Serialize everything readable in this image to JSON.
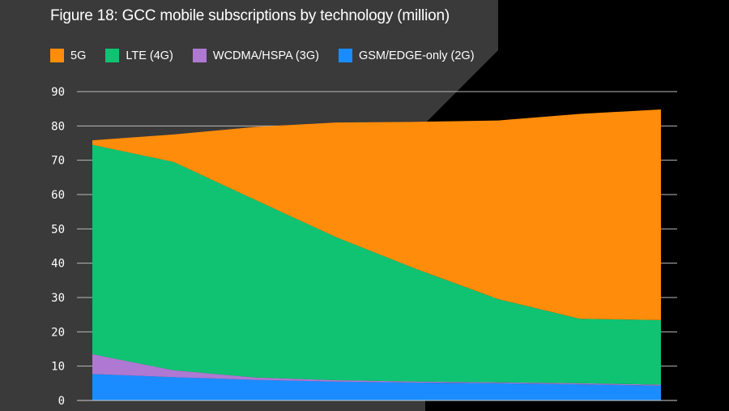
{
  "chart_data": {
    "type": "area",
    "stacked": true,
    "title": "Figure 18: GCC mobile subscriptions by technology (million)",
    "xlabel": "",
    "ylabel": "",
    "ylim": [
      0,
      90
    ],
    "yticks": [
      0,
      10,
      20,
      30,
      40,
      50,
      60,
      70,
      80,
      90
    ],
    "x": [
      0,
      1,
      2,
      3,
      4,
      5,
      6,
      7
    ],
    "series": [
      {
        "name": "GSM/EDGE-only (2G)",
        "color": "#1a8cff",
        "values": [
          7.7,
          6.8,
          6.0,
          5.5,
          5.2,
          5.0,
          4.7,
          4.3
        ]
      },
      {
        "name": "WCDMA/HSPA (3G)",
        "color": "#af78d2",
        "values": [
          5.8,
          2.0,
          0.7,
          0.4,
          0.3,
          0.3,
          0.3,
          0.3
        ]
      },
      {
        "name": "LTE (4G)",
        "color": "#0fc373",
        "values": [
          61.0,
          60.7,
          51.8,
          41.7,
          32.7,
          24.2,
          18.8,
          18.8
        ]
      },
      {
        "name": "5G",
        "color": "#ff8c0a",
        "values": [
          1.3,
          8.0,
          21.2,
          33.4,
          43.0,
          52.1,
          59.7,
          61.4
        ]
      }
    ],
    "legend_order": [
      "5G",
      "LTE (4G)",
      "WCDMA/HSPA (3G)",
      "GSM/EDGE-only (2G)"
    ],
    "grid": true
  }
}
